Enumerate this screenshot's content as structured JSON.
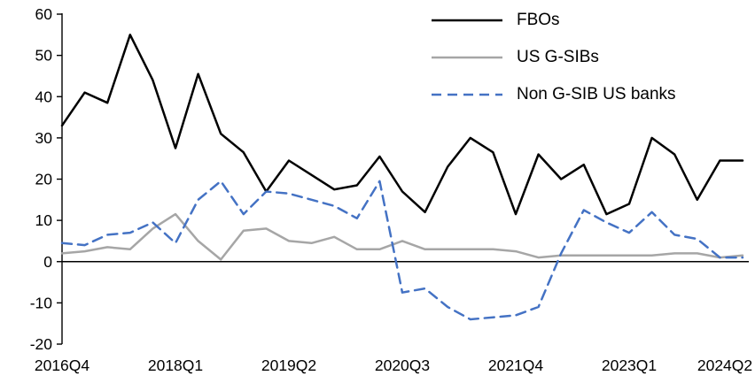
{
  "chart_data": {
    "type": "line",
    "title": "",
    "xlabel": "",
    "ylabel": "",
    "ylim": [
      -20,
      60
    ],
    "y_tick_step": 10,
    "grid": "off",
    "legend_position": "top-right",
    "axis_color": "#000000",
    "categories": [
      "2016Q4",
      "2017Q1",
      "2017Q2",
      "2017Q3",
      "2017Q4",
      "2018Q1",
      "2018Q2",
      "2018Q3",
      "2018Q4",
      "2019Q1",
      "2019Q2",
      "2019Q3",
      "2019Q4",
      "2020Q1",
      "2020Q2",
      "2020Q3",
      "2020Q4",
      "2021Q1",
      "2021Q2",
      "2021Q3",
      "2021Q4",
      "2022Q1",
      "2022Q2",
      "2022Q3",
      "2022Q4",
      "2023Q1",
      "2023Q2",
      "2023Q3",
      "2023Q4",
      "2024Q1",
      "2024Q2"
    ],
    "x_tick_labels": [
      "2016Q4",
      "2018Q1",
      "2019Q2",
      "2020Q3",
      "2021Q4",
      "2023Q1",
      "2024Q2"
    ],
    "x_tick_indices": [
      0,
      5,
      10,
      15,
      20,
      25,
      30
    ],
    "y_tick_labels": [
      "60",
      "50",
      "40",
      "30",
      "20",
      "10",
      "0",
      "-10",
      "-20"
    ],
    "series": [
      {
        "name": "FBOs",
        "color": "#000000",
        "style": "solid",
        "values": [
          33,
          41,
          38.5,
          55,
          44,
          27.5,
          45.5,
          31,
          26.5,
          17,
          24.5,
          21,
          17.5,
          18.5,
          25.5,
          17,
          12,
          23,
          30,
          26.5,
          11.5,
          26,
          20,
          23.5,
          11.5,
          14,
          30,
          26,
          15,
          24.5,
          24.5
        ]
      },
      {
        "name": "US G-SIBs",
        "color": "#a6a6a6",
        "style": "solid",
        "values": [
          2,
          2.5,
          3.5,
          3,
          8,
          11.5,
          5,
          0.5,
          7.5,
          8,
          5,
          4.5,
          6,
          3,
          3,
          5,
          3,
          3,
          3,
          3,
          2.5,
          1,
          1.5,
          1.5,
          1.5,
          1.5,
          1.5,
          2,
          2,
          1,
          1.5
        ]
      },
      {
        "name": "Non G-SIB US banks",
        "color": "#4472c4",
        "style": "dashed",
        "values": [
          4.5,
          4,
          6.5,
          7,
          9.5,
          4.5,
          15,
          19.5,
          11.5,
          17,
          16.5,
          15,
          13.5,
          10.5,
          19.5,
          -7.5,
          -6.5,
          -11,
          -14,
          -13.5,
          -13,
          -11,
          2,
          12.5,
          9.5,
          7,
          12,
          6.5,
          5.5,
          1,
          1
        ]
      }
    ]
  }
}
